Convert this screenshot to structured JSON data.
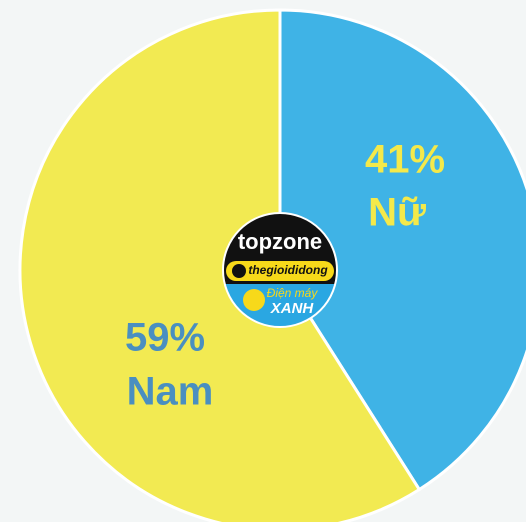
{
  "chart_data": {
    "type": "pie",
    "categories": [
      "Nữ",
      "Nam"
    ],
    "values": [
      41,
      59
    ],
    "value_labels": [
      "41%",
      "59%"
    ],
    "colors": [
      "#3fb3e6",
      "#f2ea52"
    ],
    "label_colors": [
      "#f4e94a",
      "#4a8fc0"
    ]
  },
  "logo": {
    "line1": "topzone",
    "line2": "thegioididong",
    "line3": "Điện máy",
    "line4": "XANH"
  }
}
